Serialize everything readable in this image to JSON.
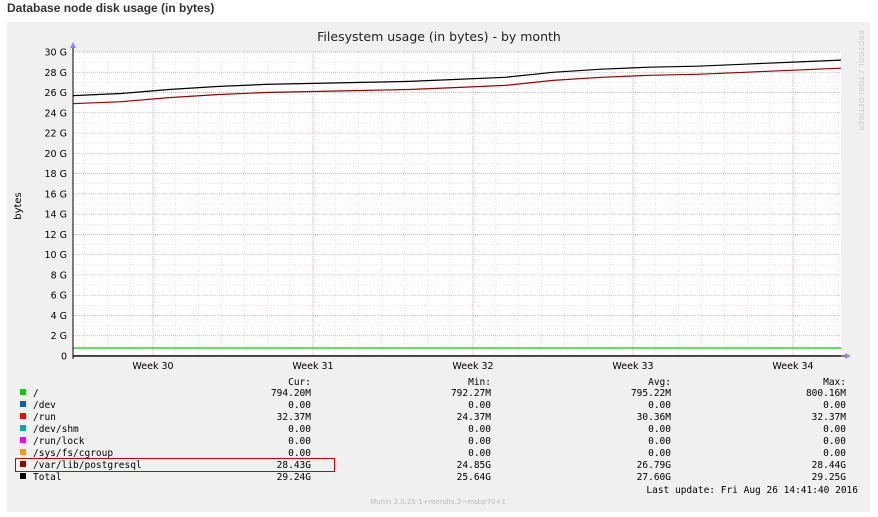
{
  "page_title": "Database node disk usage (in bytes)",
  "watermark": "RRDTOOL / TOBI OETIKER",
  "footer_version": "Munin 2.0.25-1+mendix.2~msbp70+1",
  "last_update": "Last update:  Fri Aug 26 14:41:40 2016",
  "legend_headers": {
    "cur": "Cur:",
    "min": "Min:",
    "avg": "Avg:",
    "max": "Max:"
  },
  "legend_rows": [
    {
      "name": "/",
      "color": "#00cc00",
      "cur": "794.20M",
      "min": "792.27M",
      "avg": "795.22M",
      "max": "800.16M"
    },
    {
      "name": "/dev",
      "color": "#0066b3",
      "cur": "0.00",
      "min": "0.00",
      "avg": "0.00",
      "max": "0.00"
    },
    {
      "name": "/run",
      "color": "#ff0000",
      "cur": "32.37M",
      "min": "24.37M",
      "avg": "30.36M",
      "max": "32.37M"
    },
    {
      "name": "/dev/shm",
      "color": "#00aaaa",
      "cur": "0.00",
      "min": "0.00",
      "avg": "0.00",
      "max": "0.00"
    },
    {
      "name": "/run/lock",
      "color": "#ff00ff",
      "cur": "0.00",
      "min": "0.00",
      "avg": "0.00",
      "max": "0.00"
    },
    {
      "name": "/sys/fs/cgroup",
      "color": "#ff9900",
      "cur": "0.00",
      "min": "0.00",
      "avg": "0.00",
      "max": "0.00"
    },
    {
      "name": "/var/lib/postgresql",
      "color": "#990000",
      "cur": "28.43G",
      "min": "24.85G",
      "avg": "26.79G",
      "max": "28.44G",
      "highlighted": true
    },
    {
      "name": "Total",
      "color": "#000000",
      "cur": "29.24G",
      "min": "25.64G",
      "avg": "27.60G",
      "max": "29.25G"
    }
  ],
  "chart_data": {
    "type": "line",
    "title": "Filesystem usage (in bytes) - by month",
    "ylabel": "bytes",
    "xlabel": "",
    "ylim": [
      0,
      30
    ],
    "yticks": [
      0,
      2,
      4,
      6,
      8,
      10,
      12,
      14,
      16,
      18,
      20,
      22,
      24,
      26,
      28,
      30
    ],
    "ytick_labels": [
      "0",
      "2 G",
      "4 G",
      "6 G",
      "8 G",
      "10 G",
      "12 G",
      "14 G",
      "16 G",
      "18 G",
      "20 G",
      "22 G",
      "24 G",
      "26 G",
      "28 G",
      "30 G"
    ],
    "x_categories": [
      "Week 30",
      "Week 31",
      "Week 32",
      "Week 33",
      "Week 34"
    ],
    "xlim_weeks": [
      29.5,
      34.3
    ],
    "grid": true,
    "legend_position": "bottom",
    "series": [
      {
        "name": "/",
        "color": "#00cc00",
        "x": [
          29.5,
          34.3
        ],
        "y": [
          0.79,
          0.79
        ]
      },
      {
        "name": "/dev",
        "color": "#0066b3",
        "x": [
          29.5,
          34.3
        ],
        "y": [
          0,
          0
        ]
      },
      {
        "name": "/run",
        "color": "#ff0000",
        "x": [
          29.5,
          34.3
        ],
        "y": [
          0.03,
          0.03
        ]
      },
      {
        "name": "/dev/shm",
        "color": "#00aaaa",
        "x": [
          29.5,
          34.3
        ],
        "y": [
          0,
          0
        ]
      },
      {
        "name": "/run/lock",
        "color": "#ff00ff",
        "x": [
          29.5,
          34.3
        ],
        "y": [
          0,
          0
        ]
      },
      {
        "name": "/sys/fs/cgroup",
        "color": "#ff9900",
        "x": [
          29.5,
          34.3
        ],
        "y": [
          0,
          0
        ]
      },
      {
        "name": "/var/lib/postgresql",
        "color": "#990000",
        "x": [
          29.5,
          29.8,
          30.1,
          30.4,
          30.7,
          31.0,
          31.3,
          31.6,
          31.9,
          32.2,
          32.5,
          32.8,
          33.1,
          33.4,
          33.7,
          34.0,
          34.3
        ],
        "y": [
          24.9,
          25.1,
          25.5,
          25.8,
          26.0,
          26.1,
          26.2,
          26.3,
          26.5,
          26.7,
          27.2,
          27.5,
          27.7,
          27.8,
          28.0,
          28.2,
          28.4
        ]
      },
      {
        "name": "Total",
        "color": "#000000",
        "x": [
          29.5,
          29.8,
          30.1,
          30.4,
          30.7,
          31.0,
          31.3,
          31.6,
          31.9,
          32.2,
          32.5,
          32.8,
          33.1,
          33.4,
          33.7,
          34.0,
          34.3
        ],
        "y": [
          25.7,
          25.9,
          26.3,
          26.6,
          26.8,
          26.9,
          27.0,
          27.1,
          27.3,
          27.5,
          28.0,
          28.3,
          28.5,
          28.6,
          28.8,
          29.0,
          29.2
        ]
      }
    ]
  }
}
